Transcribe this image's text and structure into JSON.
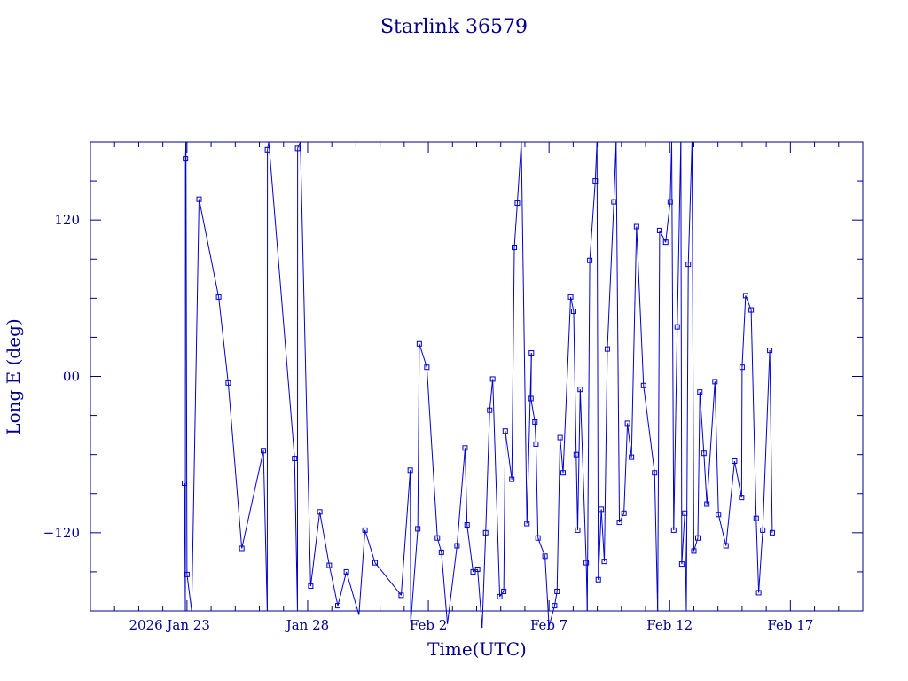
{
  "chart_data": {
    "type": "scatter",
    "title": "Starlink 36579",
    "xlabel": "Time(UTC)",
    "ylabel": "Long E (deg)",
    "xlim": [
      "2026-01-19T00:00",
      "2026-02-20T00:00"
    ],
    "ylim": [
      -180,
      180
    ],
    "x_ticks": [
      {
        "date": "2026-01-23",
        "label": "2026 Jan 23"
      },
      {
        "date": "2026-01-28",
        "label": "Jan 28"
      },
      {
        "date": "2026-02-02",
        "label": "Feb  2"
      },
      {
        "date": "2026-02-07",
        "label": "Feb  7"
      },
      {
        "date": "2026-02-12",
        "label": "Feb 12"
      },
      {
        "date": "2026-02-17",
        "label": "Feb 17"
      }
    ],
    "y_ticks": [
      {
        "value": -120,
        "label": "−120"
      },
      {
        "value": 0,
        "label": "00"
      },
      {
        "value": 120,
        "label": "120"
      }
    ],
    "y_minor_step": 30,
    "x_minor_step_days": 1,
    "line_wraps_at_plus_minus_180": true,
    "series": [
      {
        "color": "#0000cc",
        "x": [
          "2026-01-22T21:30",
          "2026-01-22T22:30",
          "2026-01-23T00:00",
          "2026-01-23T12:00",
          "2026-01-24T07:30",
          "2026-01-24T17:00",
          "2026-01-25T06:30",
          "2026-01-26T04:00",
          "2026-01-26T08:00",
          "2026-01-27T11:00",
          "2026-01-27T14:00",
          "2026-01-28T03:00",
          "2026-01-28T12:00",
          "2026-01-28T21:30",
          "2026-01-29T06:00",
          "2026-01-29T14:30",
          "2026-01-30T03:00",
          "2026-01-30T09:00",
          "2026-01-30T19:00",
          "2026-01-31T21:00",
          "2026-02-01T06:00",
          "2026-02-01T06:30",
          "2026-02-01T13:30",
          "2026-02-01T15:00",
          "2026-02-01T22:30",
          "2026-02-02T09:00",
          "2026-02-02T13:00",
          "2026-02-02T19:00",
          "2026-02-03T04:30",
          "2026-02-03T12:30",
          "2026-02-03T14:30",
          "2026-02-03T20:30",
          "2026-02-04T01:00",
          "2026-02-04T05:30",
          "2026-02-04T09:00",
          "2026-02-04T13:00",
          "2026-02-04T16:00",
          "2026-02-04T23:00",
          "2026-02-05T03:00",
          "2026-02-05T04:30",
          "2026-02-05T11:00",
          "2026-02-05T13:30",
          "2026-02-05T16:30",
          "2026-02-06T02:00",
          "2026-02-06T06:30",
          "2026-02-06T06:00",
          "2026-02-06T10:00",
          "2026-02-06T11:00",
          "2026-02-06T13:00",
          "2026-02-06T20:00",
          "2026-02-07T00:00",
          "2026-02-07T05:30",
          "2026-02-07T08:00",
          "2026-02-07T11:00",
          "2026-02-07T14:00",
          "2026-02-07T21:30",
          "2026-02-08T00:30",
          "2026-02-08T03:00",
          "2026-02-08T04:30",
          "2026-02-08T07:00",
          "2026-02-08T13:00",
          "2026-02-08T16:30",
          "2026-02-08T22:00",
          "2026-02-09T01:00",
          "2026-02-09T04:00",
          "2026-02-09T07:00",
          "2026-02-09T10:00",
          "2026-02-09T16:30",
          "2026-02-09T22:00",
          "2026-02-10T02:30",
          "2026-02-10T06:00",
          "2026-02-10T10:00",
          "2026-02-10T15:00",
          "2026-02-10T22:00",
          "2026-02-11T09:00",
          "2026-02-11T14:00",
          "2026-02-11T20:00",
          "2026-02-12T00:30",
          "2026-02-12T04:00",
          "2026-02-12T07:30",
          "2026-02-12T12:00",
          "2026-02-12T15:00",
          "2026-02-12T18:30",
          "2026-02-13T00:00",
          "2026-02-13T04:00",
          "2026-02-13T06:00",
          "2026-02-13T10:00",
          "2026-02-13T13:00",
          "2026-02-13T21:00",
          "2026-02-14T00:30",
          "2026-02-14T08:00",
          "2026-02-14T16:30",
          "2026-02-14T23:30",
          "2026-02-15T00:00",
          "2026-02-15T03:30",
          "2026-02-15T09:00",
          "2026-02-15T14:00",
          "2026-02-15T16:30",
          "2026-02-15T20:30",
          "2026-02-16T03:30",
          "2026-02-16T06:00"
        ],
        "y": [
          -82,
          167,
          -152,
          136,
          61,
          -5,
          -132,
          -57,
          174,
          -63,
          175,
          -161,
          -104,
          -145,
          -176,
          -150,
          -183,
          -118,
          -143,
          -168,
          -72,
          -189,
          -117,
          25,
          7,
          -124,
          -135,
          -190,
          -130,
          -55,
          -114,
          -150,
          -148,
          -193,
          -120,
          -26,
          -2,
          -169,
          -165,
          -42,
          -79,
          99,
          133,
          -113,
          18,
          -17,
          -35,
          -52,
          -124,
          -138,
          -192,
          -176,
          -165,
          -47,
          -74,
          61,
          50,
          -60,
          -118,
          -10,
          -143,
          89,
          150,
          -156,
          -102,
          -142,
          21,
          134,
          -112,
          -105,
          -36,
          -62,
          115,
          -7,
          -74,
          112,
          103,
          134,
          -118,
          38,
          -144,
          -105,
          86,
          -134,
          -124,
          -12,
          -59,
          -98,
          -4,
          -106,
          -130,
          -65,
          -93,
          7,
          62,
          51,
          -109,
          -166,
          -118,
          20,
          -120
        ]
      }
    ]
  }
}
